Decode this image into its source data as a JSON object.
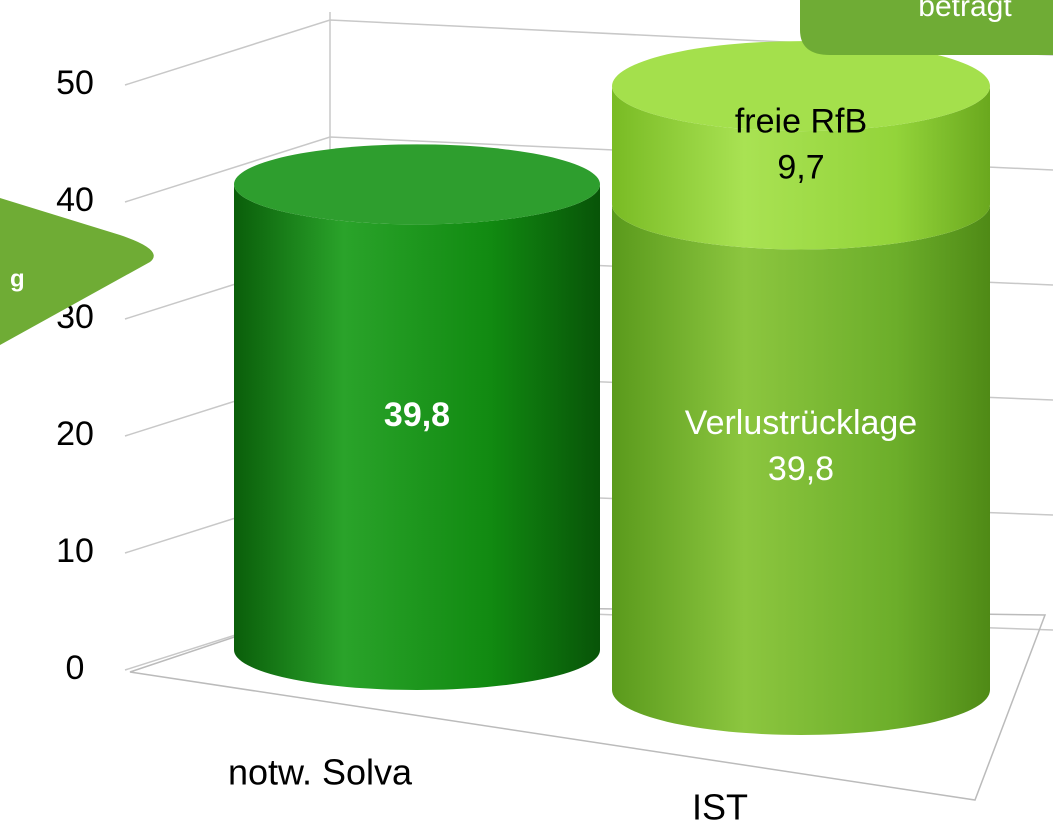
{
  "chart_data": {
    "type": "bar",
    "stacked": true,
    "categories": [
      "notw. Solva",
      "IST"
    ],
    "series": [
      {
        "name": "Verlustrücklage",
        "color": [
          "#138a13",
          "#6cae2a"
        ],
        "values": [
          39.8,
          39.8
        ],
        "value_labels": [
          "39,8",
          "39,8"
        ]
      },
      {
        "name": "freie RfB",
        "color": [
          null,
          "#93d43a"
        ],
        "values": [
          null,
          9.7
        ],
        "value_labels": [
          null,
          "9,7"
        ]
      }
    ],
    "ylim": [
      0,
      50
    ],
    "yticks": [
      0,
      10,
      20,
      30,
      40,
      50
    ],
    "grid": true,
    "annotations": [
      "beträgt",
      "g"
    ]
  }
}
